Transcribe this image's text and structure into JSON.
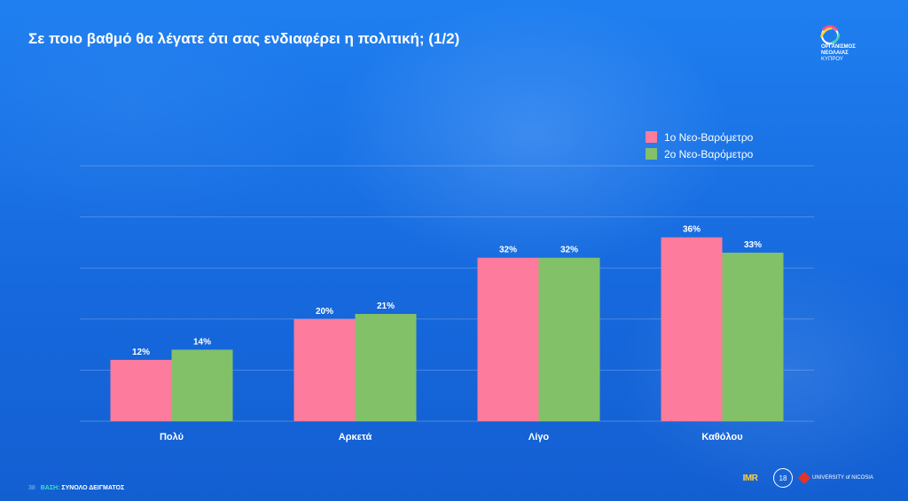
{
  "title": "Σε ποιο βαθμό θα λέγατε ότι σας ενδιαφέρει η πολιτική; (1/2)",
  "logo": {
    "icon": "youth-board-logo-icon",
    "text_lines": [
      "ΟΡΓΑΝΙΣΜΟΣ",
      "ΝΕΟΛΑΙΑΣ",
      "ΚΥΠΡΟΥ"
    ]
  },
  "footer": {
    "page_number": "38",
    "base_label": "ΒΑΣΗ:",
    "base_value": "ΣΥΝΟΛΟ ΔΕΙΓΜΑΤΟΣ"
  },
  "partners": {
    "imr": "IMR",
    "badge": "18",
    "university": "UNIVERSITY of NICOSIA"
  },
  "colors": {
    "series1": "#fd7b9c",
    "series2": "#82c168",
    "grid": "rgba(255,255,255,0.22)"
  },
  "chart_data": {
    "type": "bar",
    "title": "Σε ποιο βαθμό θα λέγατε ότι σας ενδιαφέρει η πολιτική; (1/2)",
    "categories": [
      "Πολύ",
      "Αρκετά",
      "Λίγο",
      "Καθόλου"
    ],
    "series": [
      {
        "name": "1ο Νεο-Βαρόμετρο",
        "values": [
          12,
          20,
          32,
          36
        ],
        "labels": [
          "12%",
          "20%",
          "32%",
          "36%"
        ]
      },
      {
        "name": "2ο Νεο-Βαρόμετρο",
        "values": [
          14,
          21,
          32,
          33
        ],
        "labels": [
          "14%",
          "21%",
          "32%",
          "33%"
        ]
      }
    ],
    "ylim": [
      0,
      50
    ],
    "grid": true,
    "legend": "top-right",
    "xlabel": "",
    "ylabel": ""
  }
}
